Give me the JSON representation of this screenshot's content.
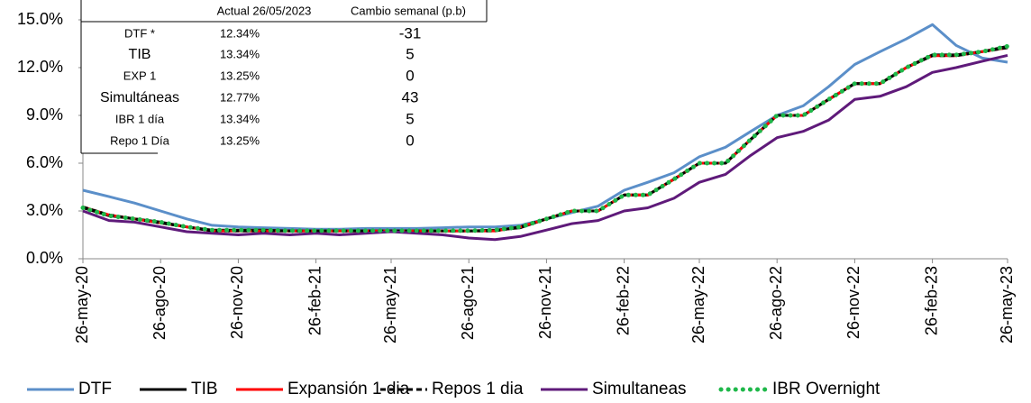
{
  "chart_data": {
    "type": "line",
    "x": [
      "2020-05-26",
      "2020-06-26",
      "2020-07-26",
      "2020-08-26",
      "2020-09-26",
      "2020-10-26",
      "2020-11-26",
      "2020-12-26",
      "2021-01-26",
      "2021-02-26",
      "2021-03-26",
      "2021-04-26",
      "2021-05-26",
      "2021-06-26",
      "2021-07-26",
      "2021-08-26",
      "2021-09-26",
      "2021-10-26",
      "2021-11-26",
      "2021-12-26",
      "2022-01-26",
      "2022-02-26",
      "2022-03-26",
      "2022-04-26",
      "2022-05-26",
      "2022-06-26",
      "2022-07-26",
      "2022-08-26",
      "2022-09-26",
      "2022-10-26",
      "2022-11-26",
      "2022-12-26",
      "2023-01-26",
      "2023-02-26",
      "2023-03-26",
      "2023-04-26",
      "2023-05-26"
    ],
    "series": [
      {
        "name": "DTF",
        "color": "#5b8fc9",
        "style": "solid",
        "values": [
          4.3,
          3.9,
          3.5,
          3.0,
          2.5,
          2.1,
          2.0,
          1.95,
          1.9,
          1.85,
          1.85,
          1.9,
          1.9,
          1.9,
          1.95,
          2.0,
          2.0,
          2.1,
          2.5,
          2.9,
          3.3,
          4.3,
          4.8,
          5.4,
          6.4,
          7.0,
          8.0,
          9.0,
          9.6,
          10.8,
          12.2,
          13.0,
          13.8,
          14.7,
          13.4,
          12.6,
          12.34
        ]
      },
      {
        "name": "TIB",
        "color": "#000000",
        "style": "solid",
        "values": [
          3.2,
          2.7,
          2.5,
          2.3,
          2.0,
          1.8,
          1.8,
          1.8,
          1.75,
          1.75,
          1.75,
          1.75,
          1.75,
          1.75,
          1.75,
          1.75,
          1.8,
          1.95,
          2.5,
          3.0,
          3.0,
          4.0,
          4.0,
          5.0,
          6.0,
          6.0,
          7.5,
          9.0,
          9.0,
          10.0,
          11.0,
          11.0,
          12.0,
          12.8,
          12.8,
          13.0,
          13.34
        ]
      },
      {
        "name": "Expansión 1 dia",
        "color": "#ff0000",
        "style": "solid",
        "values": [
          3.25,
          2.75,
          2.5,
          2.25,
          2.0,
          1.75,
          1.75,
          1.75,
          1.75,
          1.75,
          1.75,
          1.75,
          1.75,
          1.75,
          1.75,
          1.75,
          1.75,
          2.0,
          2.5,
          3.0,
          3.0,
          4.0,
          4.0,
          5.0,
          6.0,
          6.0,
          7.5,
          9.0,
          9.0,
          10.0,
          11.0,
          11.0,
          12.0,
          12.75,
          12.75,
          13.0,
          13.25
        ]
      },
      {
        "name": "Repos 1 dia",
        "color": "#000000",
        "style": "dashed",
        "values": [
          3.25,
          2.75,
          2.5,
          2.25,
          2.0,
          1.75,
          1.75,
          1.75,
          1.75,
          1.75,
          1.75,
          1.75,
          1.75,
          1.75,
          1.75,
          1.75,
          1.75,
          2.0,
          2.5,
          3.0,
          3.0,
          4.0,
          4.0,
          5.0,
          6.0,
          6.0,
          7.5,
          9.0,
          9.0,
          10.0,
          11.0,
          11.0,
          12.0,
          12.75,
          12.75,
          13.0,
          13.25
        ]
      },
      {
        "name": "Simultaneas",
        "color": "#5f1a7a",
        "style": "solid",
        "values": [
          3.0,
          2.4,
          2.3,
          2.0,
          1.7,
          1.6,
          1.5,
          1.6,
          1.5,
          1.6,
          1.5,
          1.6,
          1.7,
          1.6,
          1.5,
          1.3,
          1.2,
          1.4,
          1.8,
          2.2,
          2.4,
          3.0,
          3.2,
          3.8,
          4.8,
          5.3,
          6.5,
          7.6,
          8.0,
          8.7,
          10.0,
          10.2,
          10.8,
          11.7,
          12.0,
          12.4,
          12.77
        ]
      },
      {
        "name": "IBR Overnight",
        "color": "#1fb84a",
        "style": "dotted",
        "values": [
          3.2,
          2.7,
          2.5,
          2.3,
          2.0,
          1.8,
          1.8,
          1.8,
          1.76,
          1.76,
          1.76,
          1.76,
          1.76,
          1.76,
          1.76,
          1.76,
          1.8,
          2.0,
          2.5,
          3.0,
          3.0,
          4.0,
          4.0,
          5.0,
          6.0,
          6.0,
          7.5,
          9.0,
          9.0,
          10.0,
          11.0,
          11.0,
          12.0,
          12.8,
          12.8,
          13.0,
          13.34
        ]
      }
    ],
    "ylim": [
      0,
      15
    ],
    "yticks": [
      {
        "value": 0,
        "label": "0.0%"
      },
      {
        "value": 3,
        "label": "3.0%"
      },
      {
        "value": 6,
        "label": "6.0%"
      },
      {
        "value": 9,
        "label": "9.0%"
      },
      {
        "value": 12,
        "label": "12.0%"
      },
      {
        "value": 15,
        "label": "15.0%"
      }
    ],
    "xlim": [
      "2020-05-26",
      "2023-05-26"
    ],
    "xticks": [
      {
        "value": "2020-05-26",
        "label": "26-may-20"
      },
      {
        "value": "2020-08-26",
        "label": "26-ago-20"
      },
      {
        "value": "2020-11-26",
        "label": "26-nov-20"
      },
      {
        "value": "2021-02-26",
        "label": "26-feb-21"
      },
      {
        "value": "2021-05-26",
        "label": "26-may-21"
      },
      {
        "value": "2021-08-26",
        "label": "26-ago-21"
      },
      {
        "value": "2021-11-26",
        "label": "26-nov-21"
      },
      {
        "value": "2022-02-26",
        "label": "26-feb-22"
      },
      {
        "value": "2022-05-26",
        "label": "26-may-22"
      },
      {
        "value": "2022-08-26",
        "label": "26-ago-22"
      },
      {
        "value": "2022-11-26",
        "label": "26-nov-22"
      },
      {
        "value": "2023-02-26",
        "label": "26-feb-23"
      },
      {
        "value": "2023-05-26",
        "label": "26-may-23"
      }
    ],
    "legend": "bottom",
    "table": {
      "header": [
        "Actual 26/05/2023",
        "Cambio semanal (p.b)"
      ],
      "rows": [
        [
          "DTF *",
          "12.34%",
          -31
        ],
        [
          "TIB",
          "13.34%",
          5
        ],
        [
          "EXP 1",
          "13.25%",
          0
        ],
        [
          "Simultáneas",
          "12.77%",
          43
        ],
        [
          "IBR 1 día",
          "13.34%",
          5
        ],
        [
          "Repo 1 Día",
          "13.25%",
          0
        ]
      ]
    }
  }
}
